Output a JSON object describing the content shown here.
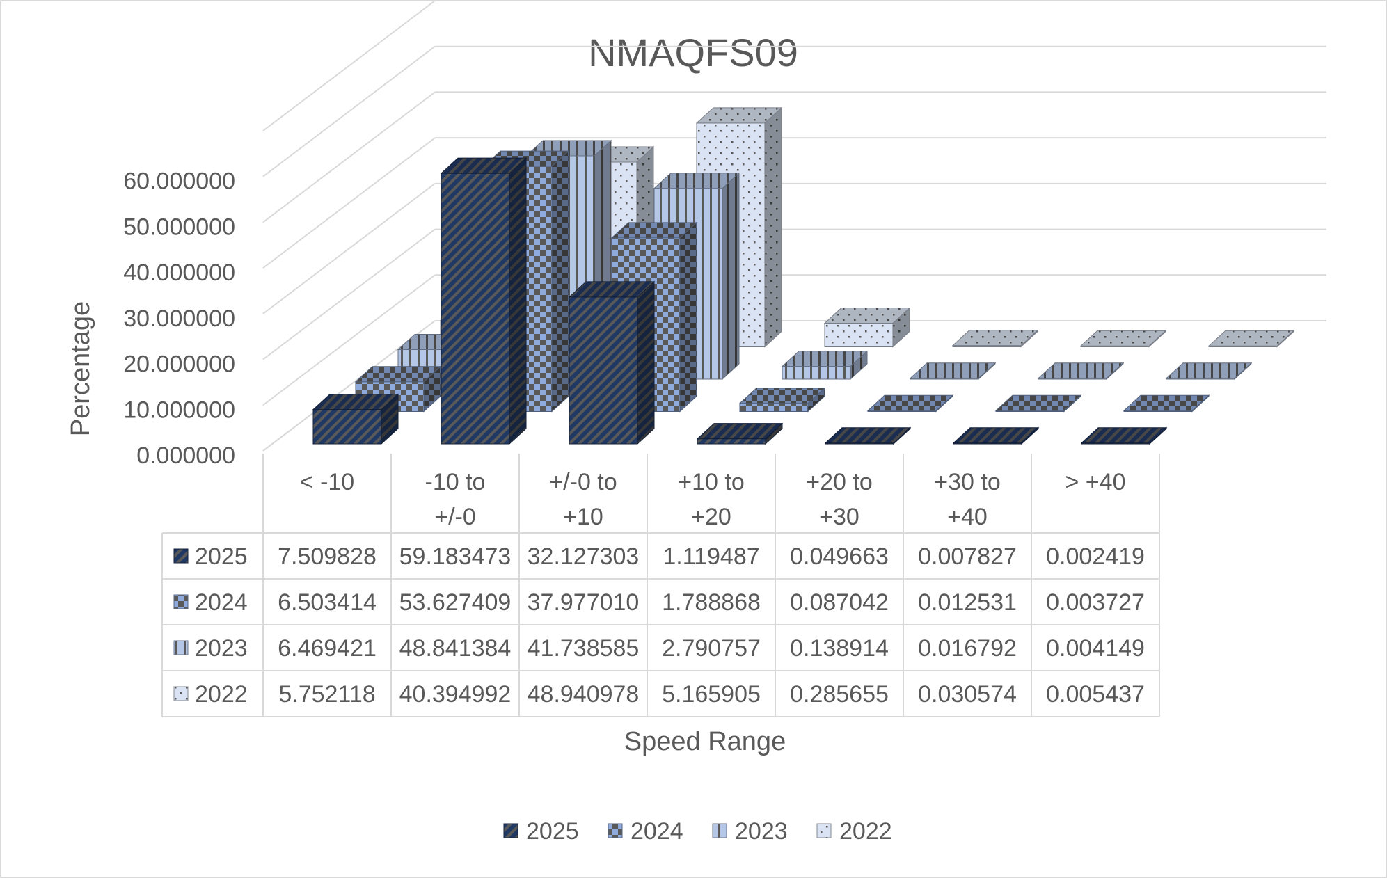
{
  "chart_data": {
    "type": "bar",
    "title": "NMAQFS09",
    "xlabel": "Speed Range",
    "ylabel": "Percentage",
    "ylim": [
      0,
      70
    ],
    "yticks": [
      "0.000000",
      "10.000000",
      "20.000000",
      "30.000000",
      "40.000000",
      "50.000000",
      "60.000000"
    ],
    "categories": [
      [
        "< -10"
      ],
      [
        "-10 to",
        "+/-0"
      ],
      [
        "+/-0 to",
        "+10"
      ],
      [
        "+10 to",
        "+20"
      ],
      [
        "+20 to",
        "+30"
      ],
      [
        "+30 to",
        "+40"
      ],
      [
        "> +40"
      ]
    ],
    "series": [
      {
        "name": "2025",
        "values": [
          7.509828,
          59.183473,
          32.127303,
          1.119487,
          0.049663,
          0.007827,
          0.002419
        ],
        "value_labels": [
          "7.509828",
          "59.183473",
          "32.127303",
          "1.119487",
          "0.049663",
          "0.007827",
          "0.002419"
        ]
      },
      {
        "name": "2024",
        "values": [
          6.503414,
          53.627409,
          37.97701,
          1.788868,
          0.087042,
          0.012531,
          0.003727
        ],
        "value_labels": [
          "6.503414",
          "53.627409",
          "37.977010",
          "1.788868",
          "0.087042",
          "0.012531",
          "0.003727"
        ]
      },
      {
        "name": "2023",
        "values": [
          6.469421,
          48.841384,
          41.738585,
          2.790757,
          0.138914,
          0.016792,
          0.004149
        ],
        "value_labels": [
          "6.469421",
          "48.841384",
          "41.738585",
          "2.790757",
          "0.138914",
          "0.016792",
          "0.004149"
        ]
      },
      {
        "name": "2022",
        "values": [
          5.752118,
          40.394992,
          48.940978,
          5.165905,
          0.285655,
          0.030574,
          0.005437
        ],
        "value_labels": [
          "5.752118",
          "40.394992",
          "48.940978",
          "5.165905",
          "0.285655",
          "0.030574",
          "0.005437"
        ]
      }
    ],
    "legend_position": "bottom",
    "data_table": true,
    "style": "3d-column",
    "colors": {
      "2025": "#203864",
      "2024": "#8faadc",
      "2023": "#b4c7e7",
      "2022": "#dae3f3",
      "pattern_dark": "#595959"
    }
  }
}
